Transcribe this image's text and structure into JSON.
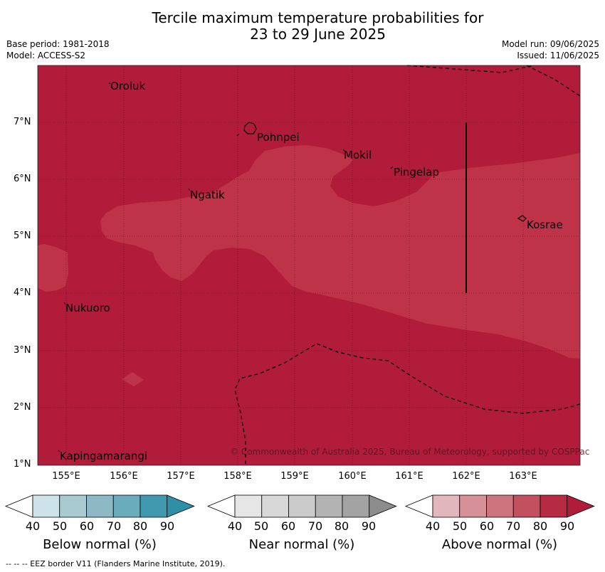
{
  "title_line1": "Tercile maximum temperature probabilities for",
  "title_line2": "23 to 29 June 2025",
  "base_period": "Base period: 1981-2018",
  "model": "Model: ACCESS-S2",
  "model_run": "Model run: 09/06/2025",
  "issued": "Issued: 11/06/2025",
  "lat_labels": [
    "7°N",
    "6°N",
    "5°N",
    "4°N",
    "3°N",
    "2°N",
    "1°N"
  ],
  "lon_labels": [
    "155°E",
    "156°E",
    "157°E",
    "158°E",
    "159°E",
    "160°E",
    "161°E",
    "162°E",
    "163°E"
  ],
  "places": {
    "oroluk": "Oroluk",
    "pohnpei": "Pohnpei",
    "mokil": "Mokil",
    "pingelap": "Pingelap",
    "ngatik": "Ngatik",
    "kosrae": "Kosrae",
    "nukuoro": "Nukuoro",
    "kapingamarangi": "Kapingamarangi"
  },
  "copyright": "© Commonwealth of Australia 2025, Bureau of Meteorology, supported by COSPPac",
  "colorbar_ticks": [
    "40",
    "50",
    "60",
    "70",
    "80",
    "90"
  ],
  "colorbars": {
    "below": {
      "label": "Below normal (%)",
      "colors": [
        "#cce3ea",
        "#a9cad1",
        "#8cb9c3",
        "#6aacbb",
        "#4199b0",
        "#2f8fa6"
      ]
    },
    "near": {
      "label": "Near normal (%)",
      "colors": [
        "#e6e6e6",
        "#d8d8d8",
        "#cbcbcb",
        "#b3b3b3",
        "#a3a3a3",
        "#8c8c8c"
      ]
    },
    "above": {
      "label": "Above normal (%)",
      "colors": [
        "#e2b6bd",
        "#d69098",
        "#cd747f",
        "#c2505f",
        "#b72a44",
        "#b11c3a"
      ]
    }
  },
  "map_colors": {
    "above_80": "#b11c3a",
    "above_70": "#bf3349"
  },
  "footer": "--  --  -- EEZ border V11 (Flanders Marine Institute, 2019)."
}
